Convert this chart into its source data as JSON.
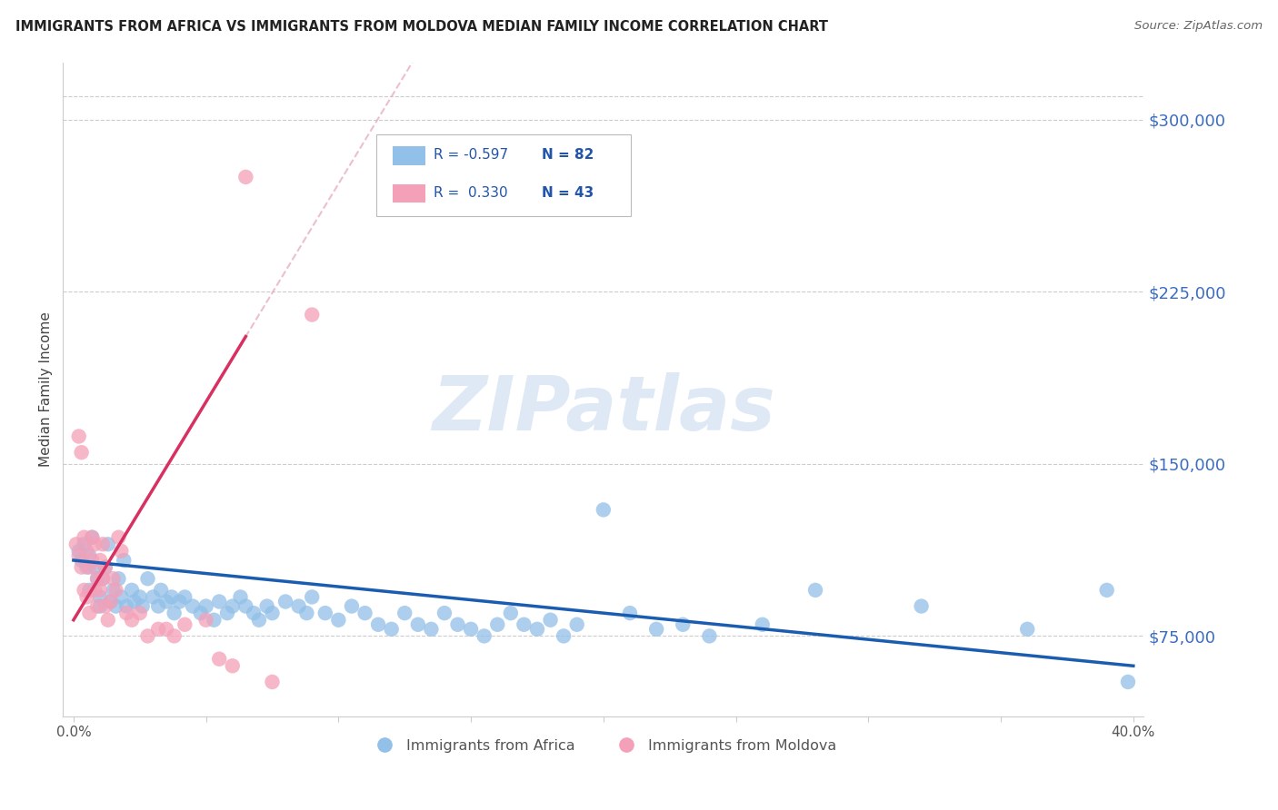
{
  "title": "IMMIGRANTS FROM AFRICA VS IMMIGRANTS FROM MOLDOVA MEDIAN FAMILY INCOME CORRELATION CHART",
  "source": "Source: ZipAtlas.com",
  "ylabel": "Median Family Income",
  "xlim": [
    -0.004,
    0.404
  ],
  "ylim": [
    40000,
    325000
  ],
  "yticks": [
    75000,
    150000,
    225000,
    300000
  ],
  "ytop_line": 310000,
  "xtick_positions": [
    0.0,
    0.05,
    0.1,
    0.15,
    0.2,
    0.25,
    0.3,
    0.35,
    0.4
  ],
  "xtick_labels": [
    "0.0%",
    "",
    "",
    "",
    "",
    "",
    "",
    "",
    "40.0%"
  ],
  "africa_color": "#92C0E8",
  "moldova_color": "#F4A0B8",
  "africa_line_color": "#1A5CB0",
  "moldova_line_color": "#D83060",
  "moldova_dashed_color": "#E8B0C0",
  "africa_scatter": {
    "x": [
      0.002,
      0.003,
      0.004,
      0.005,
      0.006,
      0.006,
      0.007,
      0.008,
      0.009,
      0.01,
      0.01,
      0.011,
      0.012,
      0.013,
      0.014,
      0.015,
      0.016,
      0.017,
      0.018,
      0.019,
      0.02,
      0.022,
      0.023,
      0.025,
      0.026,
      0.028,
      0.03,
      0.032,
      0.033,
      0.035,
      0.037,
      0.038,
      0.04,
      0.042,
      0.045,
      0.048,
      0.05,
      0.053,
      0.055,
      0.058,
      0.06,
      0.063,
      0.065,
      0.068,
      0.07,
      0.073,
      0.075,
      0.08,
      0.085,
      0.088,
      0.09,
      0.095,
      0.1,
      0.105,
      0.11,
      0.115,
      0.12,
      0.125,
      0.13,
      0.135,
      0.14,
      0.145,
      0.15,
      0.155,
      0.16,
      0.165,
      0.17,
      0.175,
      0.18,
      0.185,
      0.19,
      0.2,
      0.21,
      0.22,
      0.23,
      0.24,
      0.26,
      0.28,
      0.32,
      0.36,
      0.39,
      0.398
    ],
    "y": [
      112000,
      108000,
      115000,
      105000,
      110000,
      95000,
      118000,
      105000,
      100000,
      92000,
      88000,
      100000,
      105000,
      115000,
      90000,
      95000,
      88000,
      100000,
      92000,
      108000,
      88000,
      95000,
      90000,
      92000,
      88000,
      100000,
      92000,
      88000,
      95000,
      90000,
      92000,
      85000,
      90000,
      92000,
      88000,
      85000,
      88000,
      82000,
      90000,
      85000,
      88000,
      92000,
      88000,
      85000,
      82000,
      88000,
      85000,
      90000,
      88000,
      85000,
      92000,
      85000,
      82000,
      88000,
      85000,
      80000,
      78000,
      85000,
      80000,
      78000,
      85000,
      80000,
      78000,
      75000,
      80000,
      85000,
      80000,
      78000,
      82000,
      75000,
      80000,
      130000,
      85000,
      78000,
      80000,
      75000,
      80000,
      95000,
      88000,
      78000,
      95000,
      55000
    ]
  },
  "moldova_scatter": {
    "x": [
      0.001,
      0.002,
      0.002,
      0.003,
      0.003,
      0.004,
      0.004,
      0.005,
      0.005,
      0.006,
      0.006,
      0.007,
      0.007,
      0.008,
      0.008,
      0.009,
      0.009,
      0.01,
      0.01,
      0.011,
      0.011,
      0.012,
      0.012,
      0.013,
      0.014,
      0.015,
      0.016,
      0.017,
      0.018,
      0.02,
      0.022,
      0.025,
      0.028,
      0.032,
      0.035,
      0.038,
      0.042,
      0.05,
      0.055,
      0.06,
      0.065,
      0.075,
      0.09
    ],
    "y": [
      115000,
      110000,
      162000,
      105000,
      155000,
      95000,
      118000,
      112000,
      92000,
      105000,
      85000,
      108000,
      118000,
      115000,
      95000,
      100000,
      88000,
      95000,
      108000,
      100000,
      115000,
      88000,
      105000,
      82000,
      90000,
      100000,
      95000,
      118000,
      112000,
      85000,
      82000,
      85000,
      75000,
      78000,
      78000,
      75000,
      80000,
      82000,
      65000,
      62000,
      275000,
      55000,
      215000
    ]
  },
  "africa_regression": {
    "slope": -115000,
    "intercept": 108000
  },
  "moldova_regression": {
    "slope": 1900000,
    "intercept": 82000
  },
  "watermark_text": "ZIPatlas",
  "legend_africa_label": "Immigrants from Africa",
  "legend_moldova_label": "Immigrants from Moldova"
}
